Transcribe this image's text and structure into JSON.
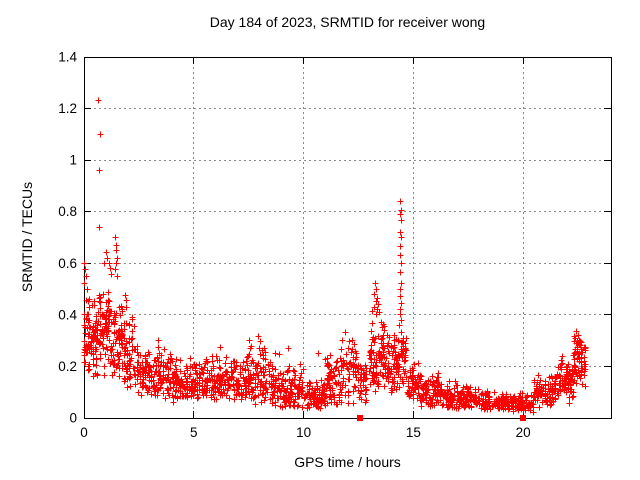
{
  "chart_data": {
    "type": "scatter",
    "title": "Day 184 of 2023, SRMTID for receiver wong",
    "xlabel": "GPS time / hours",
    "ylabel": "SRMTID / TECUs",
    "xlim": [
      0,
      24
    ],
    "ylim": [
      0,
      1.4
    ],
    "xticks": [
      [
        0,
        "0"
      ],
      [
        5,
        "5"
      ],
      [
        10,
        "10"
      ],
      [
        15,
        "15"
      ],
      [
        20,
        "20"
      ]
    ],
    "yticks": [
      [
        0,
        "0"
      ],
      [
        0.2,
        "0.2"
      ],
      [
        0.4,
        "0.4"
      ],
      [
        0.6,
        "0.6"
      ],
      [
        0.8,
        "0.8"
      ],
      [
        1,
        "1"
      ],
      [
        1.2,
        "1.2"
      ],
      [
        1.4,
        "1.4"
      ]
    ],
    "grid": true,
    "legend": "none",
    "marker": "plus",
    "colors": {
      "points": "#ff0000",
      "grid": "#8a8a8a",
      "axis": "#000000",
      "text": "#000000",
      "background": "#ffffff"
    },
    "square_points": [
      [
        12.57,
        0
      ],
      [
        19.99,
        0
      ]
    ],
    "notable_points": [
      [
        0.68,
        1.23
      ],
      [
        0.73,
        1.1
      ],
      [
        0.72,
        0.96
      ],
      [
        0.7,
        0.74
      ],
      [
        0.03,
        0.6
      ],
      [
        0.06,
        0.575
      ],
      [
        0.1,
        0.55
      ],
      [
        0.02,
        0.52
      ],
      [
        0.15,
        0.5
      ],
      [
        0.95,
        0.6
      ],
      [
        1.02,
        0.64
      ],
      [
        1.08,
        0.62
      ],
      [
        1.15,
        0.6
      ],
      [
        1.22,
        0.58
      ],
      [
        1.25,
        0.555
      ],
      [
        1.44,
        0.7
      ],
      [
        1.46,
        0.67
      ],
      [
        1.49,
        0.65
      ],
      [
        1.51,
        0.62
      ],
      [
        1.47,
        0.6
      ],
      [
        1.45,
        0.575
      ],
      [
        1.52,
        0.55
      ],
      [
        1.88,
        0.475
      ],
      [
        1.92,
        0.455
      ],
      [
        1.95,
        0.43
      ],
      [
        3.4,
        0.3
      ],
      [
        6.2,
        0.275
      ],
      [
        7.55,
        0.3
      ],
      [
        7.95,
        0.315
      ],
      [
        8.05,
        0.295
      ],
      [
        9.3,
        0.27
      ],
      [
        10.7,
        0.25
      ],
      [
        11.75,
        0.3
      ],
      [
        11.9,
        0.33
      ],
      [
        12.25,
        0.3
      ],
      [
        12.32,
        0.285
      ],
      [
        13.22,
        0.43
      ],
      [
        13.25,
        0.48
      ],
      [
        13.28,
        0.52
      ],
      [
        13.3,
        0.45
      ],
      [
        13.31,
        0.4
      ],
      [
        13.33,
        0.5
      ],
      [
        13.35,
        0.42
      ],
      [
        13.38,
        0.465
      ],
      [
        13.42,
        0.44
      ],
      [
        13.45,
        0.41
      ],
      [
        14.39,
        0.36
      ],
      [
        14.4,
        0.47
      ],
      [
        14.4,
        0.665
      ],
      [
        14.41,
        0.4
      ],
      [
        14.41,
        0.565
      ],
      [
        14.41,
        0.79
      ],
      [
        14.42,
        0.5
      ],
      [
        14.42,
        0.72
      ],
      [
        14.42,
        0.84
      ],
      [
        14.43,
        0.42
      ],
      [
        14.43,
        0.63
      ],
      [
        14.44,
        0.52
      ],
      [
        14.44,
        0.7
      ],
      [
        14.44,
        0.805
      ],
      [
        14.45,
        0.445
      ],
      [
        14.45,
        0.6
      ],
      [
        14.46,
        0.38
      ],
      [
        14.46,
        0.765
      ],
      [
        22.4,
        0.31
      ],
      [
        22.45,
        0.335
      ],
      [
        22.48,
        0.295
      ],
      [
        22.52,
        0.32
      ],
      [
        22.58,
        0.3
      ],
      [
        22.1,
        0.055
      ]
    ],
    "band_bins_format": [
      "x0_hour",
      "x1_hour",
      "num_points",
      "y_min",
      "y_max",
      "bottom_bias_exponent"
    ],
    "band_bins": [
      [
        0.0,
        0.3,
        45,
        0.14,
        0.5,
        1.2
      ],
      [
        0.3,
        0.7,
        55,
        0.15,
        0.52,
        1.3
      ],
      [
        0.7,
        1.2,
        70,
        0.16,
        0.55,
        1.2
      ],
      [
        1.2,
        1.8,
        70,
        0.13,
        0.5,
        1.3
      ],
      [
        1.8,
        2.4,
        60,
        0.1,
        0.42,
        1.3
      ],
      [
        2.4,
        3.0,
        60,
        0.08,
        0.3,
        1.2
      ],
      [
        3.0,
        4.0,
        90,
        0.07,
        0.28,
        1.3
      ],
      [
        4.0,
        5.0,
        90,
        0.06,
        0.26,
        1.3
      ],
      [
        5.0,
        6.0,
        90,
        0.06,
        0.24,
        1.3
      ],
      [
        6.0,
        7.0,
        90,
        0.06,
        0.26,
        1.3
      ],
      [
        7.0,
        8.0,
        90,
        0.05,
        0.29,
        1.3
      ],
      [
        8.0,
        9.0,
        90,
        0.04,
        0.28,
        1.3
      ],
      [
        9.0,
        10.0,
        90,
        0.03,
        0.22,
        1.4
      ],
      [
        10.0,
        11.0,
        90,
        0.03,
        0.18,
        1.4
      ],
      [
        11.0,
        12.0,
        90,
        0.04,
        0.27,
        1.4
      ],
      [
        12.0,
        12.9,
        75,
        0.05,
        0.3,
        1.3
      ],
      [
        13.0,
        13.7,
        80,
        0.09,
        0.44,
        1.2
      ],
      [
        13.7,
        14.3,
        60,
        0.08,
        0.35,
        1.3
      ],
      [
        14.3,
        14.7,
        45,
        0.1,
        0.38,
        1.2
      ],
      [
        14.7,
        15.3,
        55,
        0.06,
        0.24,
        1.3
      ],
      [
        15.3,
        16.5,
        100,
        0.04,
        0.18,
        1.4
      ],
      [
        16.5,
        18.0,
        120,
        0.03,
        0.15,
        1.4
      ],
      [
        18.0,
        19.5,
        110,
        0.03,
        0.12,
        1.4
      ],
      [
        19.5,
        20.5,
        75,
        0.02,
        0.11,
        1.4
      ],
      [
        20.5,
        21.5,
        85,
        0.04,
        0.18,
        1.3
      ],
      [
        21.5,
        22.3,
        75,
        0.07,
        0.24,
        1.2
      ],
      [
        22.3,
        22.85,
        65,
        0.11,
        0.33,
        1.1
      ]
    ]
  }
}
